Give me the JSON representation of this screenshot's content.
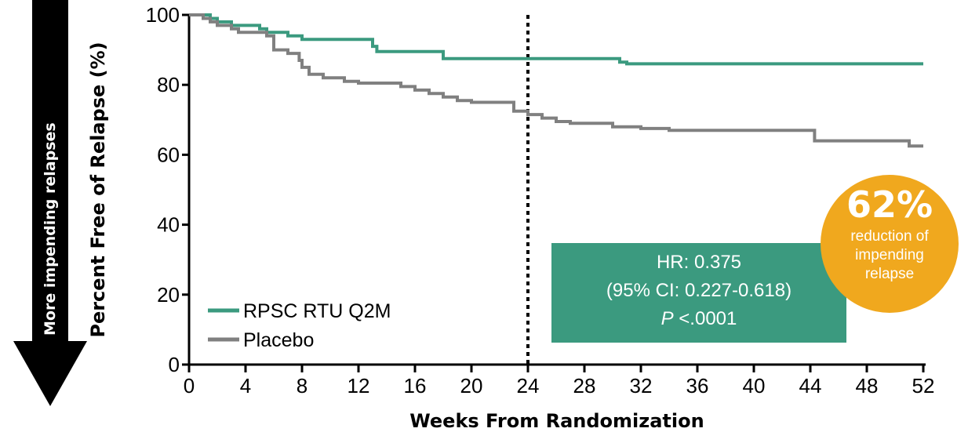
{
  "chart_data": {
    "type": "line",
    "title": "",
    "xlabel": "Weeks From Randomization",
    "ylabel": "Percent Free of Relapse (%)",
    "xlim": [
      0,
      52
    ],
    "ylim": [
      0,
      100
    ],
    "x_ticks": [
      "0",
      "4",
      "8",
      "12",
      "16",
      "20",
      "24",
      "28",
      "32",
      "36",
      "40",
      "44",
      "48",
      "52"
    ],
    "y_ticks": [
      "0",
      "20",
      "40",
      "60",
      "80",
      "100"
    ],
    "reference_line": {
      "x": 24,
      "style": "dotted"
    },
    "legend_position": "bottom-left",
    "series": [
      {
        "name": "RPSC RTU Q2M",
        "color": "#3b9a7f",
        "points": [
          [
            0,
            100
          ],
          [
            1.5,
            100
          ],
          [
            1.5,
            99
          ],
          [
            2,
            99
          ],
          [
            2,
            98
          ],
          [
            3,
            98
          ],
          [
            3,
            97
          ],
          [
            5,
            97
          ],
          [
            5,
            96
          ],
          [
            5.5,
            96
          ],
          [
            5.5,
            95
          ],
          [
            7,
            95
          ],
          [
            7,
            94
          ],
          [
            8,
            94
          ],
          [
            8,
            93
          ],
          [
            13,
            93
          ],
          [
            13,
            91
          ],
          [
            13.3,
            91
          ],
          [
            13.3,
            89.5
          ],
          [
            18,
            89.5
          ],
          [
            18,
            87.5
          ],
          [
            30.5,
            87.5
          ],
          [
            30.5,
            86.5
          ],
          [
            31,
            86.5
          ],
          [
            31,
            86
          ],
          [
            52,
            86
          ]
        ]
      },
      {
        "name": "Placebo",
        "color": "#808080",
        "points": [
          [
            0,
            100
          ],
          [
            1,
            100
          ],
          [
            1,
            99
          ],
          [
            1.5,
            99
          ],
          [
            1.5,
            98
          ],
          [
            2,
            98
          ],
          [
            2,
            97
          ],
          [
            3,
            97
          ],
          [
            3,
            96
          ],
          [
            3.5,
            96
          ],
          [
            3.5,
            95
          ],
          [
            5.5,
            95
          ],
          [
            5.5,
            94
          ],
          [
            6,
            94
          ],
          [
            6,
            90
          ],
          [
            7,
            90
          ],
          [
            7,
            89
          ],
          [
            7.8,
            89
          ],
          [
            7.8,
            87
          ],
          [
            8,
            87
          ],
          [
            8,
            85
          ],
          [
            8.5,
            85
          ],
          [
            8.5,
            83
          ],
          [
            9.5,
            83
          ],
          [
            9.5,
            82
          ],
          [
            11,
            82
          ],
          [
            11,
            81
          ],
          [
            12,
            81
          ],
          [
            12,
            80.5
          ],
          [
            15,
            80.5
          ],
          [
            15,
            79.5
          ],
          [
            16,
            79.5
          ],
          [
            16,
            78.5
          ],
          [
            17,
            78.5
          ],
          [
            17,
            77.5
          ],
          [
            18,
            77.5
          ],
          [
            18,
            76.5
          ],
          [
            19,
            76.5
          ],
          [
            19,
            75.5
          ],
          [
            20,
            75.5
          ],
          [
            20,
            75
          ],
          [
            23,
            75
          ],
          [
            23,
            72.5
          ],
          [
            24,
            72.5
          ],
          [
            24,
            71.5
          ],
          [
            25,
            71.5
          ],
          [
            25,
            70.5
          ],
          [
            26,
            70.5
          ],
          [
            26,
            69.5
          ],
          [
            27,
            69.5
          ],
          [
            27,
            69
          ],
          [
            30,
            69
          ],
          [
            30,
            68
          ],
          [
            32,
            68
          ],
          [
            32,
            67.5
          ],
          [
            34,
            67.5
          ],
          [
            34,
            67
          ],
          [
            44.3,
            67
          ],
          [
            44.3,
            64
          ],
          [
            51,
            64
          ],
          [
            51,
            62.5
          ],
          [
            52,
            62.5
          ]
        ]
      }
    ]
  },
  "annotations": {
    "hr_line1": "HR: 0.375",
    "hr_line2": "(95% CI: 0.227-0.618)",
    "p_label": "P",
    "p_value": " <.0001",
    "side_arrow": "More impending relapses",
    "badge_percent": "62%",
    "badge_line1": "reduction of",
    "badge_line2": "impending",
    "badge_line3": "relapse"
  },
  "colors": {
    "hr_box": "#3b9a7f",
    "badge": "#f0a81e",
    "side_arrow": "#000000"
  }
}
